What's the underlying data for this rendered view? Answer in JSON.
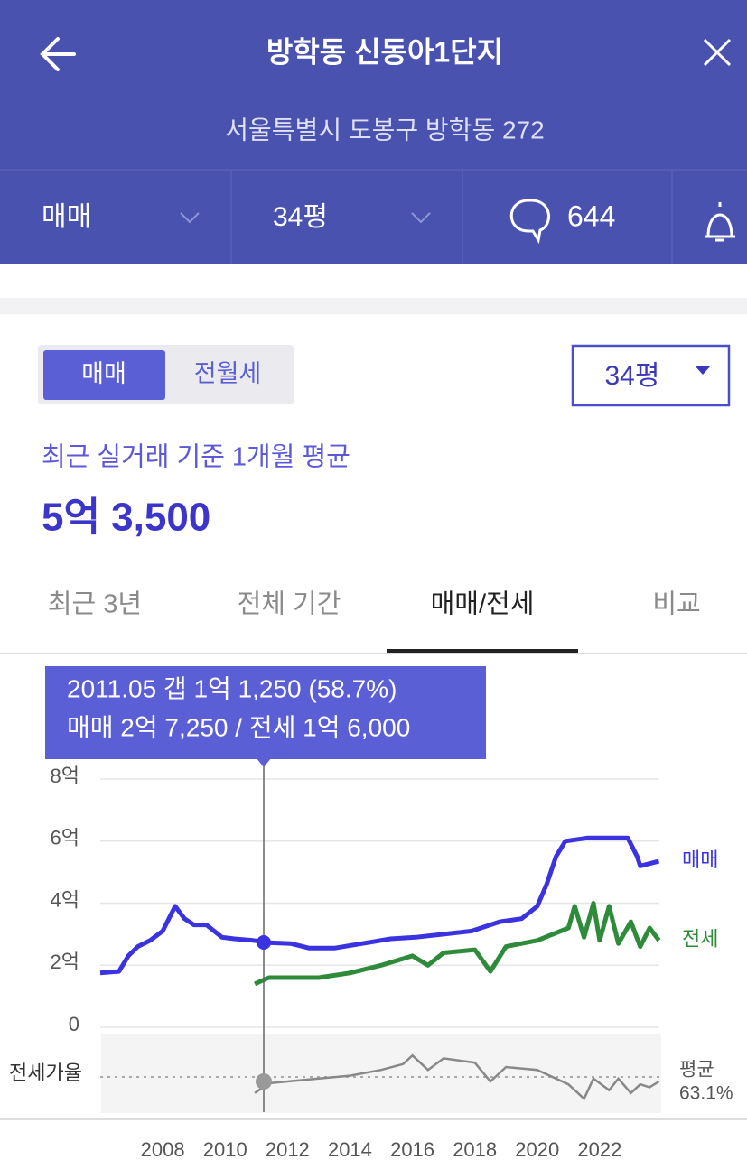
{
  "header": {
    "title": "방학동 신동아1단지",
    "address": "서울특별시 도봉구 방학동 272"
  },
  "filters": {
    "deal": "매매",
    "size": "34평",
    "comments": "644"
  },
  "toggle": [
    "매매",
    "전월세"
  ],
  "size_select": "34평",
  "summary": {
    "label": "최근 실거래 기준 1개월 평균",
    "price": "5억 3,500"
  },
  "tabs": [
    "최근 3년",
    "전체 기간",
    "매매/전세",
    "비교"
  ],
  "tooltip": {
    "line1": "2011.05  갭 1억 1,250 (58.7%)",
    "line2": "매매 2억 7,250 / 전세 1억 6,000"
  },
  "chart_data": [
    {
      "type": "line",
      "xlim": [
        2006,
        2024
      ],
      "xticks": [
        2008,
        2010,
        2012,
        2014,
        2016,
        2018,
        2020,
        2022
      ],
      "ylim": [
        0,
        8
      ],
      "yticks": [
        0,
        {
          "value": 2,
          "label": "2억"
        },
        {
          "value": 4,
          "label": "4억"
        },
        {
          "value": 6,
          "label": "6억"
        },
        {
          "value": 8,
          "label": "8억"
        }
      ],
      "grid": true,
      "series": [
        {
          "name": "매매",
          "color": "#3b33e0",
          "x": [
            2006.0,
            2006.6,
            2006.9,
            2007.2,
            2007.6,
            2008.0,
            2008.4,
            2008.7,
            2009.0,
            2009.4,
            2009.9,
            2010.3,
            2010.9,
            2011.4,
            2012.1,
            2012.7,
            2013.5,
            2014.4,
            2015.3,
            2016.1,
            2017.0,
            2017.9,
            2018.8,
            2019.5,
            2020.0,
            2020.3,
            2020.6,
            2020.9,
            2021.6,
            2022.9,
            2023.2,
            2023.3,
            2023.9
          ],
          "values": [
            1.75,
            1.8,
            2.3,
            2.6,
            2.8,
            3.1,
            3.9,
            3.5,
            3.3,
            3.3,
            2.9,
            2.85,
            2.8,
            2.73,
            2.7,
            2.55,
            2.55,
            2.7,
            2.85,
            2.9,
            3.0,
            3.1,
            3.4,
            3.5,
            3.9,
            4.6,
            5.5,
            6.0,
            6.1,
            6.1,
            5.5,
            5.2,
            5.35
          ]
        },
        {
          "name": "전세",
          "color": "#2e8b3a",
          "x": [
            2010.95,
            2011.4,
            2012.0,
            2013.0,
            2014.0,
            2015.0,
            2016.0,
            2016.5,
            2017.0,
            2018.0,
            2018.5,
            2019.0,
            2020.0,
            2021.0,
            2021.2,
            2021.5,
            2021.8,
            2022.0,
            2022.3,
            2022.6,
            2023.0,
            2023.3,
            2023.6,
            2023.9
          ],
          "values": [
            1.4,
            1.6,
            1.6,
            1.6,
            1.75,
            2.0,
            2.3,
            2.0,
            2.4,
            2.5,
            1.8,
            2.6,
            2.8,
            3.2,
            3.9,
            2.9,
            4.0,
            2.8,
            3.9,
            2.7,
            3.4,
            2.6,
            3.2,
            2.8
          ]
        }
      ]
    },
    {
      "type": "ratio",
      "name": "전세가율",
      "color": "#888888",
      "x": [
        2010.95,
        2011.4,
        2012.0,
        2013.0,
        2014.0,
        2015.0,
        2015.7,
        2016.0,
        2016.5,
        2017.0,
        2018.0,
        2018.5,
        2019.0,
        2020.0,
        2021.0,
        2021.5,
        2021.8,
        2022.3,
        2022.6,
        2023.0,
        2023.3,
        2023.6,
        2023.9
      ],
      "values": [
        52,
        58.7,
        60,
        62,
        64,
        68,
        72,
        78,
        68,
        76,
        73,
        60,
        70,
        68,
        58,
        48,
        62,
        54,
        62,
        52,
        58,
        56,
        60
      ],
      "average_name": "평균",
      "average": {
        "value": 63.1,
        "label": "63.1%"
      }
    }
  ]
}
